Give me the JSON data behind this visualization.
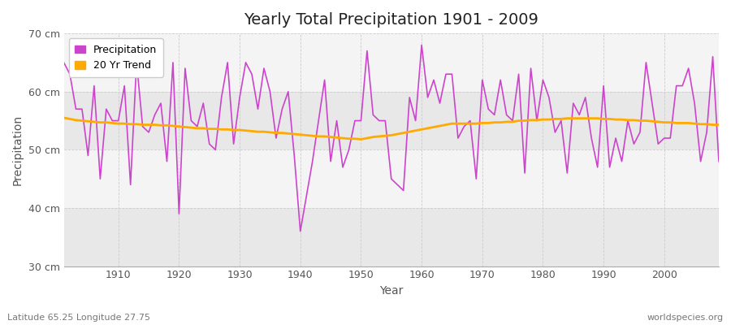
{
  "title": "Yearly Total Precipitation 1901 - 2009",
  "xlabel": "Year",
  "ylabel": "Precipitation",
  "subtitle_left": "Latitude 65.25 Longitude 27.75",
  "subtitle_right": "worldspecies.org",
  "bg_color": "#ffffff",
  "plot_bg_color": "#e8e8e8",
  "band_light": "#f0f0f0",
  "band_dark": "#e0e0e0",
  "ylim": [
    30,
    70
  ],
  "xlim": [
    1901,
    2009
  ],
  "yticks": [
    30,
    40,
    50,
    60,
    70
  ],
  "ytick_labels": [
    "30 cm",
    "40 cm",
    "50 cm",
    "60 cm",
    "70 cm"
  ],
  "xticks": [
    1910,
    1920,
    1930,
    1940,
    1950,
    1960,
    1970,
    1980,
    1990,
    2000
  ],
  "precip_color": "#cc44cc",
  "trend_color": "#ffaa00",
  "years": [
    1901,
    1902,
    1903,
    1904,
    1905,
    1906,
    1907,
    1908,
    1909,
    1910,
    1911,
    1912,
    1913,
    1914,
    1915,
    1916,
    1917,
    1918,
    1919,
    1920,
    1921,
    1922,
    1923,
    1924,
    1925,
    1926,
    1927,
    1928,
    1929,
    1930,
    1931,
    1932,
    1933,
    1934,
    1935,
    1936,
    1937,
    1938,
    1939,
    1940,
    1941,
    1942,
    1943,
    1944,
    1945,
    1946,
    1947,
    1948,
    1949,
    1950,
    1951,
    1952,
    1953,
    1954,
    1955,
    1956,
    1957,
    1958,
    1959,
    1960,
    1961,
    1962,
    1963,
    1964,
    1965,
    1966,
    1967,
    1968,
    1969,
    1970,
    1971,
    1972,
    1973,
    1974,
    1975,
    1976,
    1977,
    1978,
    1979,
    1980,
    1981,
    1982,
    1983,
    1984,
    1985,
    1986,
    1987,
    1988,
    1989,
    1990,
    1991,
    1992,
    1993,
    1994,
    1995,
    1996,
    1997,
    1998,
    1999,
    2000,
    2001,
    2002,
    2003,
    2004,
    2005,
    2006,
    2007,
    2008,
    2009
  ],
  "precip": [
    65,
    63,
    57,
    57,
    49,
    61,
    45,
    57,
    55,
    55,
    61,
    44,
    65,
    54,
    53,
    56,
    58,
    48,
    65,
    39,
    64,
    55,
    54,
    58,
    51,
    50,
    59,
    65,
    51,
    59,
    65,
    63,
    57,
    64,
    60,
    52,
    57,
    60,
    49,
    36,
    42,
    48,
    55,
    62,
    48,
    55,
    47,
    50,
    55,
    55,
    67,
    56,
    55,
    55,
    45,
    44,
    43,
    59,
    55,
    68,
    59,
    62,
    58,
    63,
    63,
    52,
    54,
    55,
    45,
    62,
    57,
    56,
    62,
    56,
    55,
    63,
    46,
    64,
    55,
    62,
    59,
    53,
    55,
    46,
    58,
    56,
    59,
    52,
    47,
    61,
    47,
    52,
    48,
    55,
    51,
    53,
    65,
    58,
    51,
    52,
    52,
    61,
    61,
    64,
    58,
    48,
    53,
    66,
    48
  ],
  "trend": [
    55.5,
    55.3,
    55.1,
    55.0,
    54.9,
    54.8,
    54.7,
    54.7,
    54.6,
    54.5,
    54.5,
    54.4,
    54.4,
    54.3,
    54.3,
    54.3,
    54.2,
    54.2,
    54.1,
    54.0,
    53.9,
    53.8,
    53.7,
    53.7,
    53.6,
    53.6,
    53.5,
    53.5,
    53.4,
    53.4,
    53.3,
    53.2,
    53.1,
    53.1,
    53.0,
    52.9,
    52.9,
    52.8,
    52.7,
    52.6,
    52.5,
    52.4,
    52.3,
    52.3,
    52.2,
    52.1,
    52.0,
    51.9,
    51.9,
    51.8,
    52.0,
    52.2,
    52.3,
    52.4,
    52.5,
    52.7,
    52.9,
    53.1,
    53.3,
    53.5,
    53.7,
    53.9,
    54.1,
    54.3,
    54.5,
    54.5,
    54.5,
    54.5,
    54.5,
    54.6,
    54.6,
    54.7,
    54.7,
    54.8,
    54.8,
    55.0,
    55.0,
    55.1,
    55.1,
    55.2,
    55.2,
    55.3,
    55.3,
    55.4,
    55.4,
    55.4,
    55.4,
    55.4,
    55.4,
    55.3,
    55.3,
    55.2,
    55.2,
    55.1,
    55.1,
    55.0,
    55.0,
    54.9,
    54.8,
    54.7,
    54.7,
    54.6,
    54.6,
    54.6,
    54.5,
    54.4,
    54.4,
    54.3,
    54.3
  ]
}
